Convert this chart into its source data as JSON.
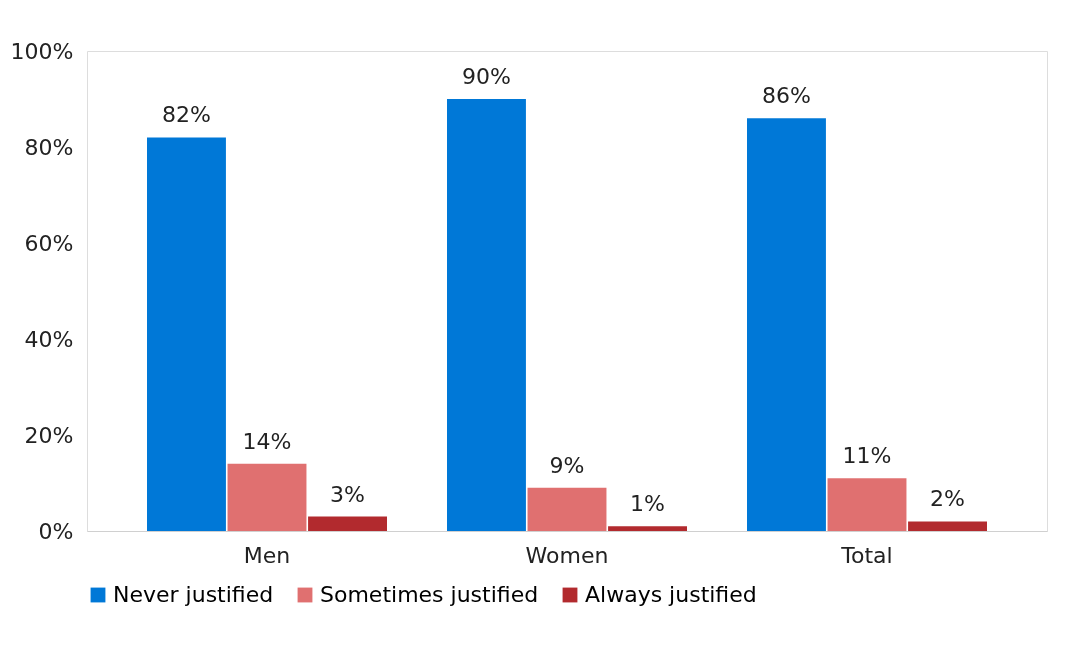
{
  "chart_data": {
    "type": "bar",
    "categories": [
      "Men",
      "Women",
      "Total"
    ],
    "series": [
      {
        "name": "Never justified",
        "color": "#0078d7",
        "values": [
          82,
          90,
          86
        ],
        "value_labels": [
          "82%",
          "90%",
          "86%"
        ]
      },
      {
        "name": "Sometimes justified",
        "color": "#e07070",
        "values": [
          14,
          9,
          11
        ],
        "value_labels": [
          "14%",
          "9%",
          "11%"
        ]
      },
      {
        "name": "Always justified",
        "color": "#b22a2e",
        "values": [
          3,
          1,
          2
        ],
        "value_labels": [
          "3%",
          "1%",
          "2%"
        ]
      }
    ],
    "ylim": [
      0,
      100
    ],
    "yticks": [
      {
        "value": 0,
        "label": "0%"
      },
      {
        "value": 20,
        "label": "20%"
      },
      {
        "value": 40,
        "label": "40%"
      },
      {
        "value": 60,
        "label": "60%"
      },
      {
        "value": 80,
        "label": "80%"
      },
      {
        "value": 100,
        "label": "100%"
      }
    ],
    "grid": false,
    "legend": "bottom"
  }
}
